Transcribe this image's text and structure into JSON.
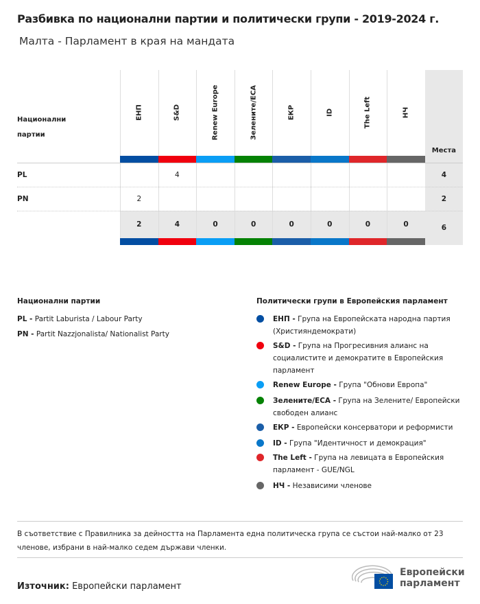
{
  "title": "Разбивка по национални партии и политически групи - 2019-2024 г.",
  "subtitle": "Малта - Парламент в края на мандата",
  "table": {
    "row_header": "Национални партии",
    "seats_header": "Места",
    "groups": [
      {
        "label": "ЕНП",
        "color": "#034ea2"
      },
      {
        "label": "S&D",
        "color": "#f0000e"
      },
      {
        "label": "Renew Europe",
        "color": "#0a9ef5"
      },
      {
        "label": "Зелените/ЕСА",
        "color": "#058204"
      },
      {
        "label": "ЕКР",
        "color": "#1b5ea8"
      },
      {
        "label": "ID",
        "color": "#0977c9"
      },
      {
        "label": "The Left",
        "color": "#df262a"
      },
      {
        "label": "НЧ",
        "color": "#666666"
      }
    ],
    "rows": [
      {
        "party": "PL",
        "values": [
          "",
          "4",
          "",
          "",
          "",
          "",
          "",
          ""
        ],
        "seats": "4"
      },
      {
        "party": "PN",
        "values": [
          "2",
          "",
          "",
          "",
          "",
          "",
          "",
          ""
        ],
        "seats": "2"
      }
    ],
    "totals": {
      "values": [
        "2",
        "4",
        "0",
        "0",
        "0",
        "0",
        "0",
        "0"
      ],
      "seats": "6"
    }
  },
  "legend": {
    "parties_title": "Национални партии",
    "parties": [
      {
        "abbr": "PL -",
        "name": "Partit Laburista / Labour Party"
      },
      {
        "abbr": "PN -",
        "name": "Partit Nazzjonalista/ Nationalist Party"
      }
    ],
    "groups_title": "Политически групи в Европейския парламент",
    "groups": [
      {
        "abbr": "ЕНП -",
        "name": "Група на Европейската народна партия (Християндемократи)",
        "color": "#034ea2"
      },
      {
        "abbr": "S&D -",
        "name": "Група на Прогресивния алианс на социалистите и демократите в Европейския парламент",
        "color": "#f0000e"
      },
      {
        "abbr": "Renew Europe -",
        "name": "Група \"Обнови Европа\"",
        "color": "#0a9ef5"
      },
      {
        "abbr": "Зелените/ЕСА -",
        "name": "Група на Зелените/ Европейски свободен алианс",
        "color": "#058204"
      },
      {
        "abbr": "ЕКР -",
        "name": "Европейски консерватори и реформисти",
        "color": "#1b5ea8"
      },
      {
        "abbr": "ID -",
        "name": "Група \"Идентичност и демокрация\"",
        "color": "#0977c9"
      },
      {
        "abbr": "The Left -",
        "name": "Група на левицата в Европейския парламент - GUE/NGL",
        "color": "#df262a"
      },
      {
        "abbr": "НЧ -",
        "name": "Независими членове",
        "color": "#666666"
      }
    ]
  },
  "note": "В съответствие с Правилника за дейността на Парламента една политическа група се състои най-малко от 23 членове, избрани в най-малко седем държави членки.",
  "source": {
    "label": "Източник:",
    "value": "Европейски парламент"
  },
  "logo": {
    "text": "Европейски парламент"
  }
}
